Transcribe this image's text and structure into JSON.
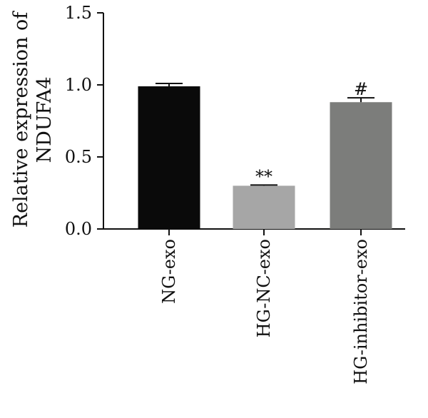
{
  "chart_data": {
    "type": "bar",
    "ylabel_lines": [
      "Relative expression of",
      "NDUFA4"
    ],
    "xlabel": "",
    "categories": [
      "NG-exo",
      "HG-NC-exo",
      "HG-inhibitor-exo"
    ],
    "values": [
      0.99,
      0.3,
      0.88
    ],
    "errors": [
      0.02,
      0.005,
      0.03
    ],
    "significance": [
      "",
      "**",
      "#"
    ],
    "colors": [
      "#0a0a0a",
      "#a6a6a6",
      "#7c7d7b"
    ],
    "ylim": [
      0,
      1.5
    ],
    "yticks": [
      0.0,
      0.5,
      1.0,
      1.5
    ],
    "ytick_labels": [
      "0.0",
      "0.5",
      "1.0",
      "1.5"
    ],
    "grid": false,
    "legend": "none"
  }
}
